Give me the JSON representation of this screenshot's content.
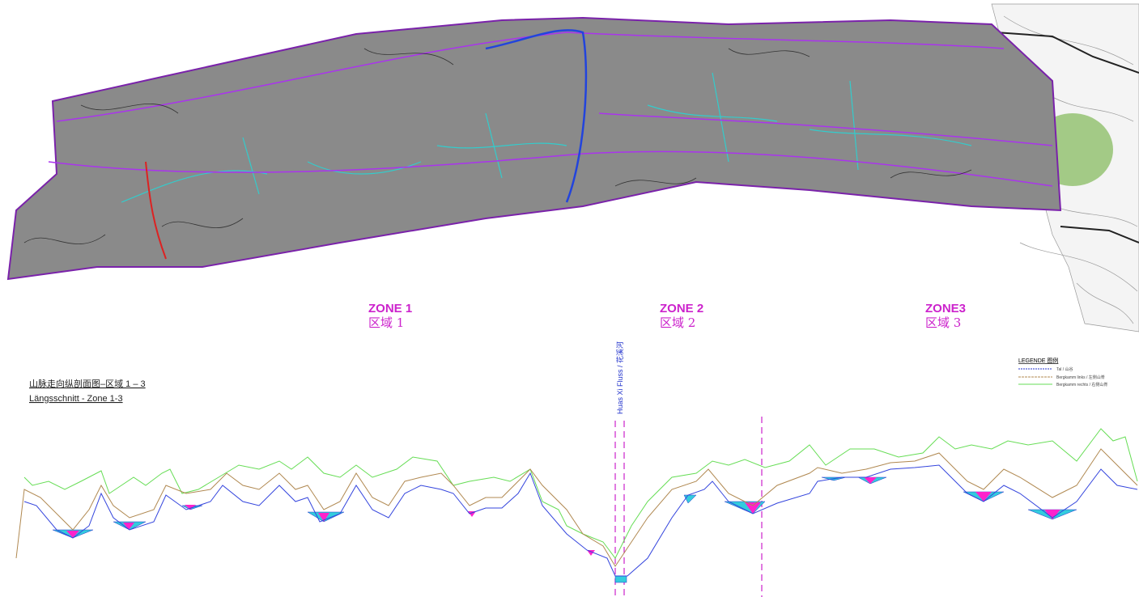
{
  "zones": [
    {
      "name": "ZONE 1",
      "name_cn": "区域 1"
    },
    {
      "name": "ZONE 2",
      "name_cn": "区域 2"
    },
    {
      "name": "ZONE3",
      "name_cn": "区域 3"
    }
  ],
  "profile": {
    "title_cn": "山脉走向纵剖面图–区域 1 – 3",
    "title_de": "Längsschnitt - Zone 1-3",
    "river": "Huas Xi Fluss / 花溪河"
  },
  "legend": {
    "title": "LEGENDE 图例",
    "items": [
      "Tal / 山谷",
      "Bergkamm links / 左侧山脊",
      "Bergkamm rechts / 右侧山脊"
    ]
  }
}
